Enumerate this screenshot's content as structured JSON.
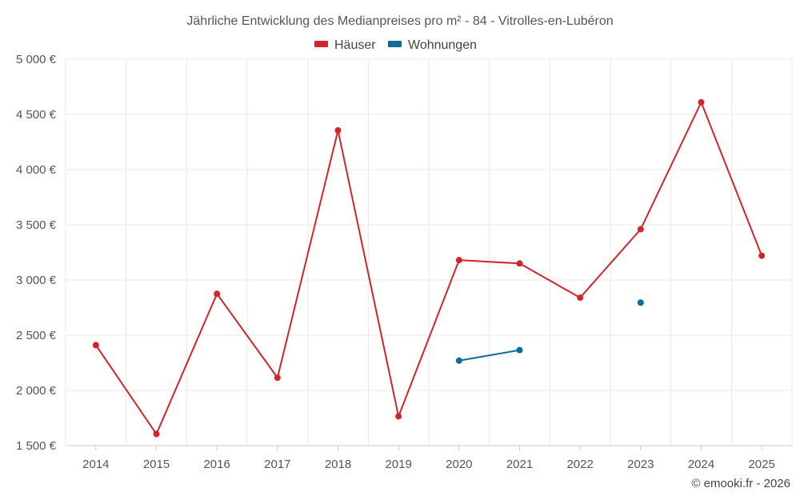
{
  "chart_data": {
    "type": "line",
    "title": "Jährliche Entwicklung des Medianpreises pro m² - 84 - Vitrolles-en-Lubéron",
    "x": [
      "2014",
      "2015",
      "2016",
      "2017",
      "2018",
      "2019",
      "2020",
      "2021",
      "2022",
      "2023",
      "2024",
      "2025"
    ],
    "ylim": [
      1500,
      5000
    ],
    "yticks": [
      1500,
      2000,
      2500,
      3000,
      3500,
      4000,
      4500,
      5000
    ],
    "ytick_labels": [
      "1 500 €",
      "2 000 €",
      "2 500 €",
      "3 000 €",
      "3 500 €",
      "4 000 €",
      "4 500 €",
      "5 000 €"
    ],
    "grid": true,
    "legend_position": "top-center",
    "series": [
      {
        "name": "Häuser",
        "color": "#d0262b",
        "values": [
          2410,
          1605,
          2875,
          2115,
          4355,
          1765,
          3180,
          3150,
          2840,
          3460,
          4610,
          3220
        ]
      },
      {
        "name": "Wohnungen",
        "color": "#0e6a9c",
        "values": [
          null,
          null,
          null,
          null,
          null,
          null,
          2270,
          2365,
          null,
          2795,
          null,
          null
        ]
      }
    ]
  },
  "credit": "© emooki.fr - 2026"
}
